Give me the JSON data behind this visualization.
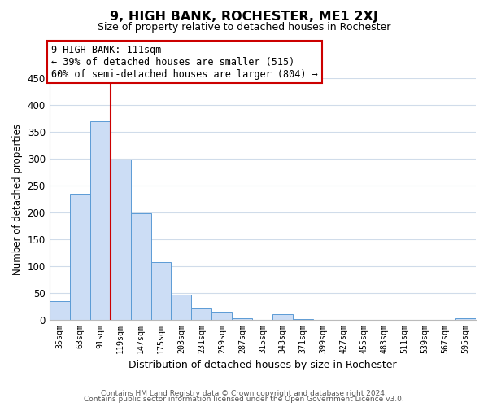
{
  "title": "9, HIGH BANK, ROCHESTER, ME1 2XJ",
  "subtitle": "Size of property relative to detached houses in Rochester",
  "xlabel": "Distribution of detached houses by size in Rochester",
  "ylabel": "Number of detached properties",
  "bar_color": "#ccddf5",
  "bar_edge_color": "#5b9bd5",
  "categories": [
    "35sqm",
    "63sqm",
    "91sqm",
    "119sqm",
    "147sqm",
    "175sqm",
    "203sqm",
    "231sqm",
    "259sqm",
    "287sqm",
    "315sqm",
    "343sqm",
    "371sqm",
    "399sqm",
    "427sqm",
    "455sqm",
    "483sqm",
    "511sqm",
    "539sqm",
    "567sqm",
    "595sqm"
  ],
  "values": [
    35,
    235,
    370,
    298,
    198,
    107,
    47,
    23,
    15,
    3,
    0,
    10,
    1,
    0,
    0,
    0,
    0,
    0,
    0,
    0,
    2
  ],
  "ylim": [
    0,
    450
  ],
  "yticks": [
    0,
    50,
    100,
    150,
    200,
    250,
    300,
    350,
    400,
    450
  ],
  "property_line_x": 2.5,
  "property_line_color": "#cc0000",
  "annotation_title": "9 HIGH BANK: 111sqm",
  "annotation_line1": "← 39% of detached houses are smaller (515)",
  "annotation_line2": "60% of semi-detached houses are larger (804) →",
  "annotation_box_color": "#ffffff",
  "annotation_box_edge": "#cc0000",
  "footer_line1": "Contains HM Land Registry data © Crown copyright and database right 2024.",
  "footer_line2": "Contains public sector information licensed under the Open Government Licence v3.0.",
  "bg_color": "#ffffff",
  "grid_color": "#d0dcea"
}
